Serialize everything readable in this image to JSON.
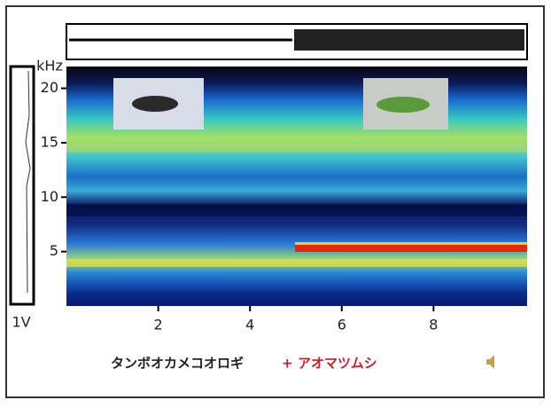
{
  "chart_data": {
    "type": "spectrogram",
    "y_label": "kHz",
    "amplitude_label": "1V",
    "xlim": [
      0,
      10
    ],
    "xticks": [
      2,
      4,
      6,
      8
    ],
    "ylim": [
      0,
      22
    ],
    "yticks": [
      5,
      10,
      15,
      20
    ],
    "caption": {
      "species_1": "タンボオカメコオロギ",
      "joiner": "+",
      "species_2": "アオマツムシ"
    }
  }
}
